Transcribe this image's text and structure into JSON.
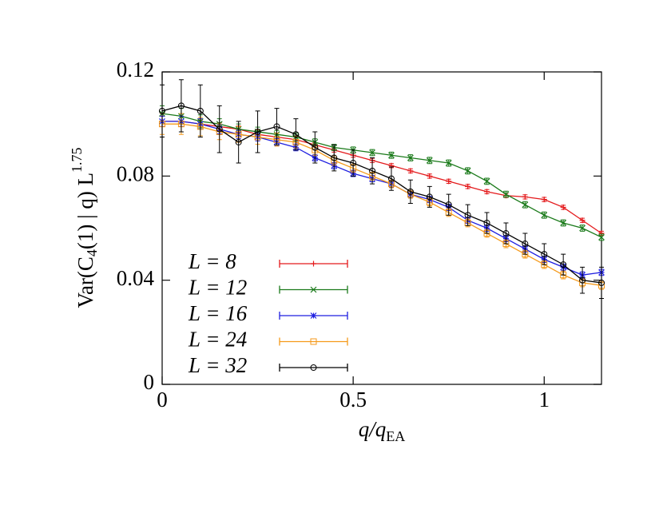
{
  "chart_data": {
    "type": "line",
    "xlabel": {
      "main": "q/q",
      "sub": "EA"
    },
    "ylabel": {
      "main": "Var(C",
      "sub": "4",
      "rest": "(1) | q) L",
      "sup": "1.75"
    },
    "x": [
      0,
      0.05,
      0.1,
      0.15,
      0.2,
      0.25,
      0.3,
      0.35,
      0.4,
      0.45,
      0.5,
      0.55,
      0.6,
      0.65,
      0.7,
      0.75,
      0.8,
      0.85,
      0.9,
      0.95,
      1.0,
      1.05,
      1.1,
      1.15
    ],
    "xlim": [
      0,
      1.15
    ],
    "ylim": [
      0,
      0.12
    ],
    "xticks": [
      0,
      0.5,
      1
    ],
    "yticks": [
      0,
      0.04,
      0.08,
      0.12
    ],
    "series": [
      {
        "name": "L = 8",
        "color": "#e41a1c",
        "marker": "plus",
        "values": [
          0.101,
          0.101,
          0.1,
          0.099,
          0.098,
          0.096,
          0.095,
          0.094,
          0.092,
          0.09,
          0.088,
          0.086,
          0.084,
          0.082,
          0.08,
          0.078,
          0.076,
          0.074,
          0.0725,
          0.072,
          0.071,
          0.068,
          0.063,
          0.058
        ],
        "errors": [
          0.002,
          0.002,
          0.0015,
          0.0015,
          0.0012,
          0.001,
          0.001,
          0.001,
          0.0008,
          0.0008,
          0.0008,
          0.0008,
          0.0008,
          0.0008,
          0.0008,
          0.0008,
          0.0008,
          0.0008,
          0.0008,
          0.0008,
          0.0008,
          0.0008,
          0.0008,
          0.0008
        ]
      },
      {
        "name": "L = 12",
        "color": "#1a7a1a",
        "marker": "cross",
        "values": [
          0.104,
          0.103,
          0.101,
          0.1,
          0.098,
          0.097,
          0.096,
          0.095,
          0.093,
          0.091,
          0.09,
          0.089,
          0.088,
          0.087,
          0.086,
          0.085,
          0.082,
          0.078,
          0.073,
          0.069,
          0.065,
          0.062,
          0.06,
          0.0565
        ],
        "errors": [
          0.003,
          0.003,
          0.0025,
          0.002,
          0.002,
          0.0018,
          0.0015,
          0.0015,
          0.0013,
          0.0012,
          0.0012,
          0.0012,
          0.0012,
          0.0012,
          0.0012,
          0.0012,
          0.0012,
          0.0012,
          0.0012,
          0.0012,
          0.0012,
          0.0012,
          0.0012,
          0.0012
        ]
      },
      {
        "name": "L = 16",
        "color": "#1f1fe0",
        "marker": "star",
        "values": [
          0.101,
          0.101,
          0.1,
          0.098,
          0.096,
          0.095,
          0.093,
          0.091,
          0.087,
          0.084,
          0.081,
          0.079,
          0.077,
          0.073,
          0.071,
          0.068,
          0.063,
          0.06,
          0.056,
          0.052,
          0.048,
          0.045,
          0.042,
          0.043
        ],
        "errors": [
          0.002,
          0.002,
          0.002,
          0.0018,
          0.0016,
          0.0015,
          0.0014,
          0.0013,
          0.0012,
          0.0012,
          0.0012,
          0.0012,
          0.0012,
          0.0012,
          0.0012,
          0.0012,
          0.0012,
          0.0012,
          0.0012,
          0.0012,
          0.0012,
          0.0012,
          0.0012,
          0.0012
        ]
      },
      {
        "name": "L = 24",
        "color": "#f59a1b",
        "marker": "square",
        "values": [
          0.1,
          0.1,
          0.099,
          0.097,
          0.096,
          0.095,
          0.094,
          0.093,
          0.09,
          0.086,
          0.083,
          0.08,
          0.077,
          0.073,
          0.07,
          0.066,
          0.062,
          0.058,
          0.054,
          0.05,
          0.046,
          0.042,
          0.039,
          0.038
        ],
        "errors": [
          0.004,
          0.004,
          0.0035,
          0.003,
          0.003,
          0.0028,
          0.0025,
          0.0022,
          0.002,
          0.0018,
          0.0016,
          0.0015,
          0.0015,
          0.0015,
          0.0015,
          0.0015,
          0.0015,
          0.0015,
          0.0015,
          0.0015,
          0.0015,
          0.0015,
          0.0015,
          0.0015
        ]
      },
      {
        "name": "L = 32",
        "color": "#000000",
        "marker": "circle",
        "values": [
          0.105,
          0.107,
          0.105,
          0.098,
          0.093,
          0.097,
          0.099,
          0.096,
          0.091,
          0.087,
          0.085,
          0.082,
          0.079,
          0.074,
          0.072,
          0.069,
          0.065,
          0.062,
          0.058,
          0.054,
          0.05,
          0.046,
          0.04,
          0.039
        ],
        "errors": [
          0.01,
          0.01,
          0.01,
          0.009,
          0.008,
          0.008,
          0.007,
          0.006,
          0.006,
          0.005,
          0.005,
          0.005,
          0.0045,
          0.0045,
          0.004,
          0.004,
          0.004,
          0.004,
          0.004,
          0.004,
          0.004,
          0.004,
          0.005,
          0.006
        ]
      }
    ]
  }
}
